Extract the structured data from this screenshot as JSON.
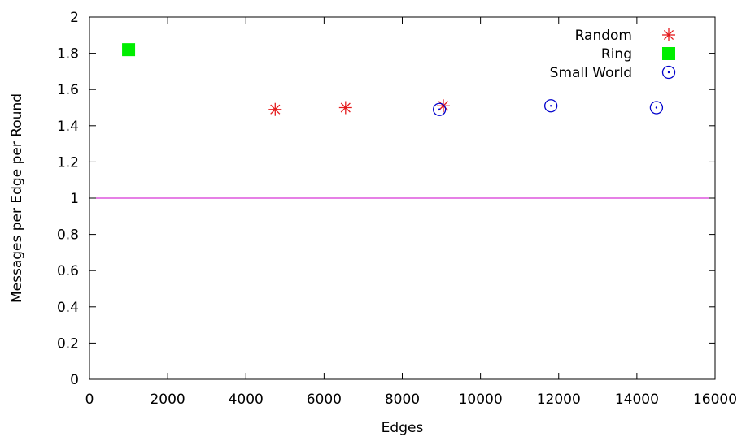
{
  "chart_data": {
    "type": "scatter",
    "title": "",
    "xlabel": "Edges",
    "ylabel": "Messages per Edge per Round",
    "xlim": [
      0,
      16000
    ],
    "ylim": [
      0,
      2
    ],
    "x_ticks": [
      0,
      2000,
      4000,
      6000,
      8000,
      10000,
      12000,
      14000,
      16000
    ],
    "x_tick_labels": [
      "0",
      "2000",
      "4000",
      "6000",
      "8000",
      "10000",
      "12000",
      "14000",
      "16000"
    ],
    "y_ticks": [
      0,
      0.2,
      0.4,
      0.6,
      0.8,
      1,
      1.2,
      1.4,
      1.6,
      1.8,
      2
    ],
    "y_tick_labels": [
      "0",
      "0.2",
      "0.4",
      "0.6",
      "0.8",
      "1",
      "1.2",
      "1.4",
      "1.6",
      "1.8",
      "2"
    ],
    "grid": false,
    "legend_position": "top-right",
    "series": [
      {
        "name": "Random",
        "marker": "asterisk",
        "color": "#e41a1c",
        "points": [
          {
            "x": 4750,
            "y": 1.49
          },
          {
            "x": 6550,
            "y": 1.5
          },
          {
            "x": 9050,
            "y": 1.51
          }
        ]
      },
      {
        "name": "Ring",
        "marker": "filled-square",
        "color": "#00ee00",
        "points": [
          {
            "x": 1000,
            "y": 1.82
          }
        ]
      },
      {
        "name": "Small World",
        "marker": "dotted-circle",
        "color": "#0000cc",
        "points": [
          {
            "x": 8950,
            "y": 1.49
          },
          {
            "x": 11800,
            "y": 1.51
          },
          {
            "x": 14500,
            "y": 1.5
          }
        ]
      }
    ],
    "reference_lines": [
      {
        "y": 1,
        "color": "#cc00cc"
      }
    ]
  }
}
